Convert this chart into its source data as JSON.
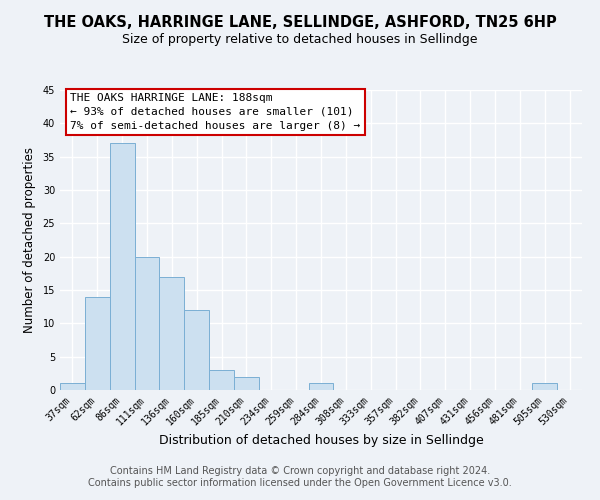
{
  "title": "THE OAKS, HARRINGE LANE, SELLINDGE, ASHFORD, TN25 6HP",
  "subtitle": "Size of property relative to detached houses in Sellindge",
  "xlabel": "Distribution of detached houses by size in Sellindge",
  "ylabel": "Number of detached properties",
  "bar_color": "#cce0f0",
  "bar_edge_color": "#7aafd4",
  "categories": [
    "37sqm",
    "62sqm",
    "86sqm",
    "111sqm",
    "136sqm",
    "160sqm",
    "185sqm",
    "210sqm",
    "234sqm",
    "259sqm",
    "284sqm",
    "308sqm",
    "333sqm",
    "357sqm",
    "382sqm",
    "407sqm",
    "431sqm",
    "456sqm",
    "481sqm",
    "505sqm",
    "530sqm"
  ],
  "values": [
    1,
    14,
    37,
    20,
    17,
    12,
    3,
    2,
    0,
    0,
    1,
    0,
    0,
    0,
    0,
    0,
    0,
    0,
    0,
    1,
    0
  ],
  "ylim": [
    0,
    45
  ],
  "yticks": [
    0,
    5,
    10,
    15,
    20,
    25,
    30,
    35,
    40,
    45
  ],
  "annotation_title": "THE OAKS HARRINGE LANE: 188sqm",
  "annotation_line2": "← 93% of detached houses are smaller (101)",
  "annotation_line3": "7% of semi-detached houses are larger (8) →",
  "annotation_box_color": "white",
  "annotation_border_color": "#cc0000",
  "footer_line1": "Contains HM Land Registry data © Crown copyright and database right 2024.",
  "footer_line2": "Contains public sector information licensed under the Open Government Licence v3.0.",
  "background_color": "#eef2f7",
  "grid_color": "white",
  "title_fontsize": 10.5,
  "subtitle_fontsize": 9,
  "xlabel_fontsize": 9,
  "ylabel_fontsize": 8.5,
  "tick_fontsize": 7,
  "annotation_fontsize": 8,
  "footer_fontsize": 7
}
